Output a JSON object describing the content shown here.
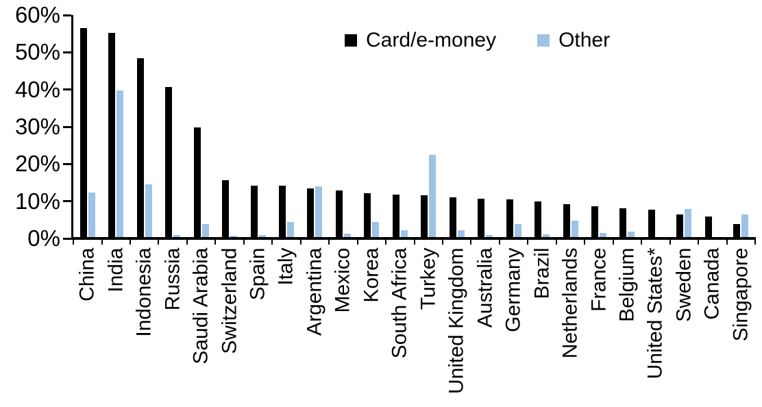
{
  "chart_data": {
    "type": "bar",
    "title": "",
    "categories": [
      "China",
      "India",
      "Indonesia",
      "Russia",
      "Saudi Arabia",
      "Switzerland",
      "Spain",
      "Italy",
      "Argentina",
      "Mexico",
      "Korea",
      "South Africa",
      "Turkey",
      "United Kingdom",
      "Australia",
      "Germany",
      "Brazil",
      "Netherlands",
      "France",
      "Belgium",
      "United States*",
      "Sweden",
      "Canada",
      "Singapore"
    ],
    "series": [
      {
        "name": "Card/e-money",
        "color": "#000000",
        "values": [
          56.5,
          55.2,
          48.4,
          40.7,
          29.8,
          15.6,
          14.2,
          14.1,
          13.4,
          12.9,
          12.2,
          11.7,
          11.6,
          11.0,
          10.7,
          10.5,
          10.0,
          9.2,
          8.6,
          8.1,
          7.8,
          6.4,
          5.8,
          3.9
        ]
      },
      {
        "name": "Other",
        "color": "#9DC3E6",
        "values": [
          12.3,
          39.7,
          14.5,
          0.9,
          3.9,
          0.7,
          0.9,
          4.5,
          13.9,
          1.2,
          4.5,
          2.3,
          22.5,
          2.3,
          0.9,
          3.9,
          1.1,
          4.8,
          1.4,
          1.9,
          0.2,
          7.9,
          0,
          6.5
        ]
      }
    ],
    "xlabel": "",
    "ylabel": "",
    "ylim": [
      0,
      60
    ],
    "yticks": [
      "0%",
      "10%",
      "20%",
      "30%",
      "40%",
      "50%",
      "60%"
    ],
    "grid": false,
    "legend_position": "top",
    "axis_color": "#000000",
    "background_color": "#FFFFFF"
  }
}
